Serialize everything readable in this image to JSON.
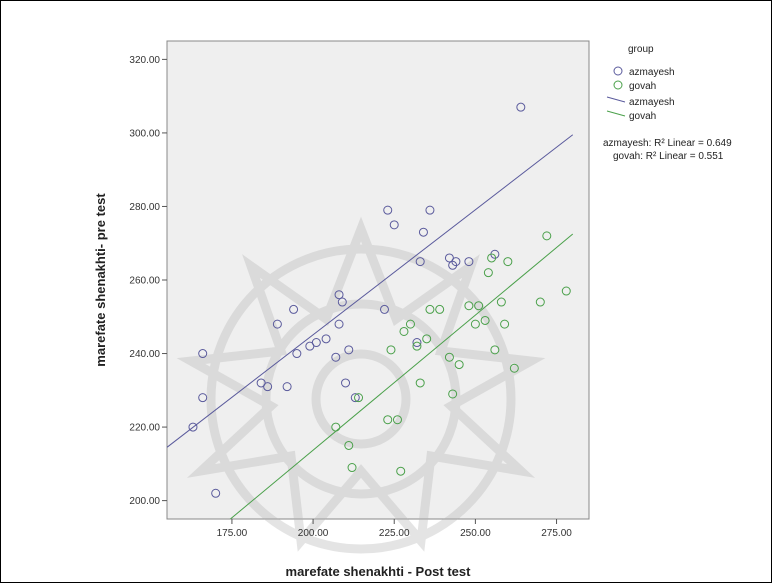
{
  "chart_data": {
    "type": "scatter",
    "xlabel": "marefate shenakhti - Post test",
    "ylabel": "marefate shenakhti- pre test",
    "xlim": [
      155,
      285
    ],
    "ylim": [
      195,
      325
    ],
    "x_ticks": [
      "175.00",
      "200.00",
      "225.00",
      "250.00",
      "275.00"
    ],
    "x_tick_values": [
      175,
      200,
      225,
      250,
      275
    ],
    "y_ticks": [
      "200.00",
      "220.00",
      "240.00",
      "260.00",
      "280.00",
      "300.00",
      "320.00"
    ],
    "y_tick_values": [
      200,
      220,
      240,
      260,
      280,
      300,
      320
    ],
    "grid": false,
    "legend_position": "top-right",
    "legend": {
      "title": "group",
      "marker_items": [
        "azmayesh",
        "govah"
      ],
      "line_items": [
        "azmayesh",
        "govah"
      ]
    },
    "annotations": [
      "azmayesh: R² Linear = 0.649",
      "govah: R² Linear = 0.551"
    ],
    "series": [
      {
        "name": "azmayesh",
        "color": "#5a5a9c",
        "points": [
          [
            163,
            220
          ],
          [
            166,
            228
          ],
          [
            166,
            240
          ],
          [
            170,
            202
          ],
          [
            184,
            232
          ],
          [
            186,
            231
          ],
          [
            189,
            248
          ],
          [
            192,
            231
          ],
          [
            194,
            252
          ],
          [
            195,
            240
          ],
          [
            199,
            242
          ],
          [
            201,
            243
          ],
          [
            204,
            244
          ],
          [
            207,
            239
          ],
          [
            208,
            248
          ],
          [
            208,
            256
          ],
          [
            209,
            254
          ],
          [
            210,
            232
          ],
          [
            211,
            241
          ],
          [
            213,
            228
          ],
          [
            222,
            252
          ],
          [
            223,
            279
          ],
          [
            225,
            275
          ],
          [
            232,
            243
          ],
          [
            233,
            265
          ],
          [
            234,
            273
          ],
          [
            236,
            279
          ],
          [
            242,
            266
          ],
          [
            243,
            264
          ],
          [
            244,
            265
          ],
          [
            248,
            265
          ],
          [
            256,
            267
          ],
          [
            264,
            307
          ]
        ],
        "fit": {
          "x": [
            155,
            280
          ],
          "y": [
            214.5,
            299.5
          ]
        }
      },
      {
        "name": "govah",
        "color": "#4aa04a",
        "points": [
          [
            207,
            220
          ],
          [
            211,
            215
          ],
          [
            212,
            209
          ],
          [
            214,
            228
          ],
          [
            223,
            222
          ],
          [
            224,
            241
          ],
          [
            226,
            222
          ],
          [
            227,
            208
          ],
          [
            228,
            246
          ],
          [
            230,
            248
          ],
          [
            232,
            242
          ],
          [
            233,
            232
          ],
          [
            235,
            244
          ],
          [
            236,
            252
          ],
          [
            239,
            252
          ],
          [
            242,
            239
          ],
          [
            243,
            229
          ],
          [
            245,
            237
          ],
          [
            248,
            253
          ],
          [
            250,
            248
          ],
          [
            251,
            253
          ],
          [
            253,
            249
          ],
          [
            254,
            262
          ],
          [
            255,
            266
          ],
          [
            256,
            241
          ],
          [
            258,
            254
          ],
          [
            259,
            248
          ],
          [
            260,
            265
          ],
          [
            262,
            236
          ],
          [
            270,
            254
          ],
          [
            272,
            272
          ],
          [
            278,
            257
          ]
        ],
        "fit": {
          "x": [
            165,
            280
          ],
          "y": [
            188,
            272.5
          ]
        }
      }
    ]
  }
}
